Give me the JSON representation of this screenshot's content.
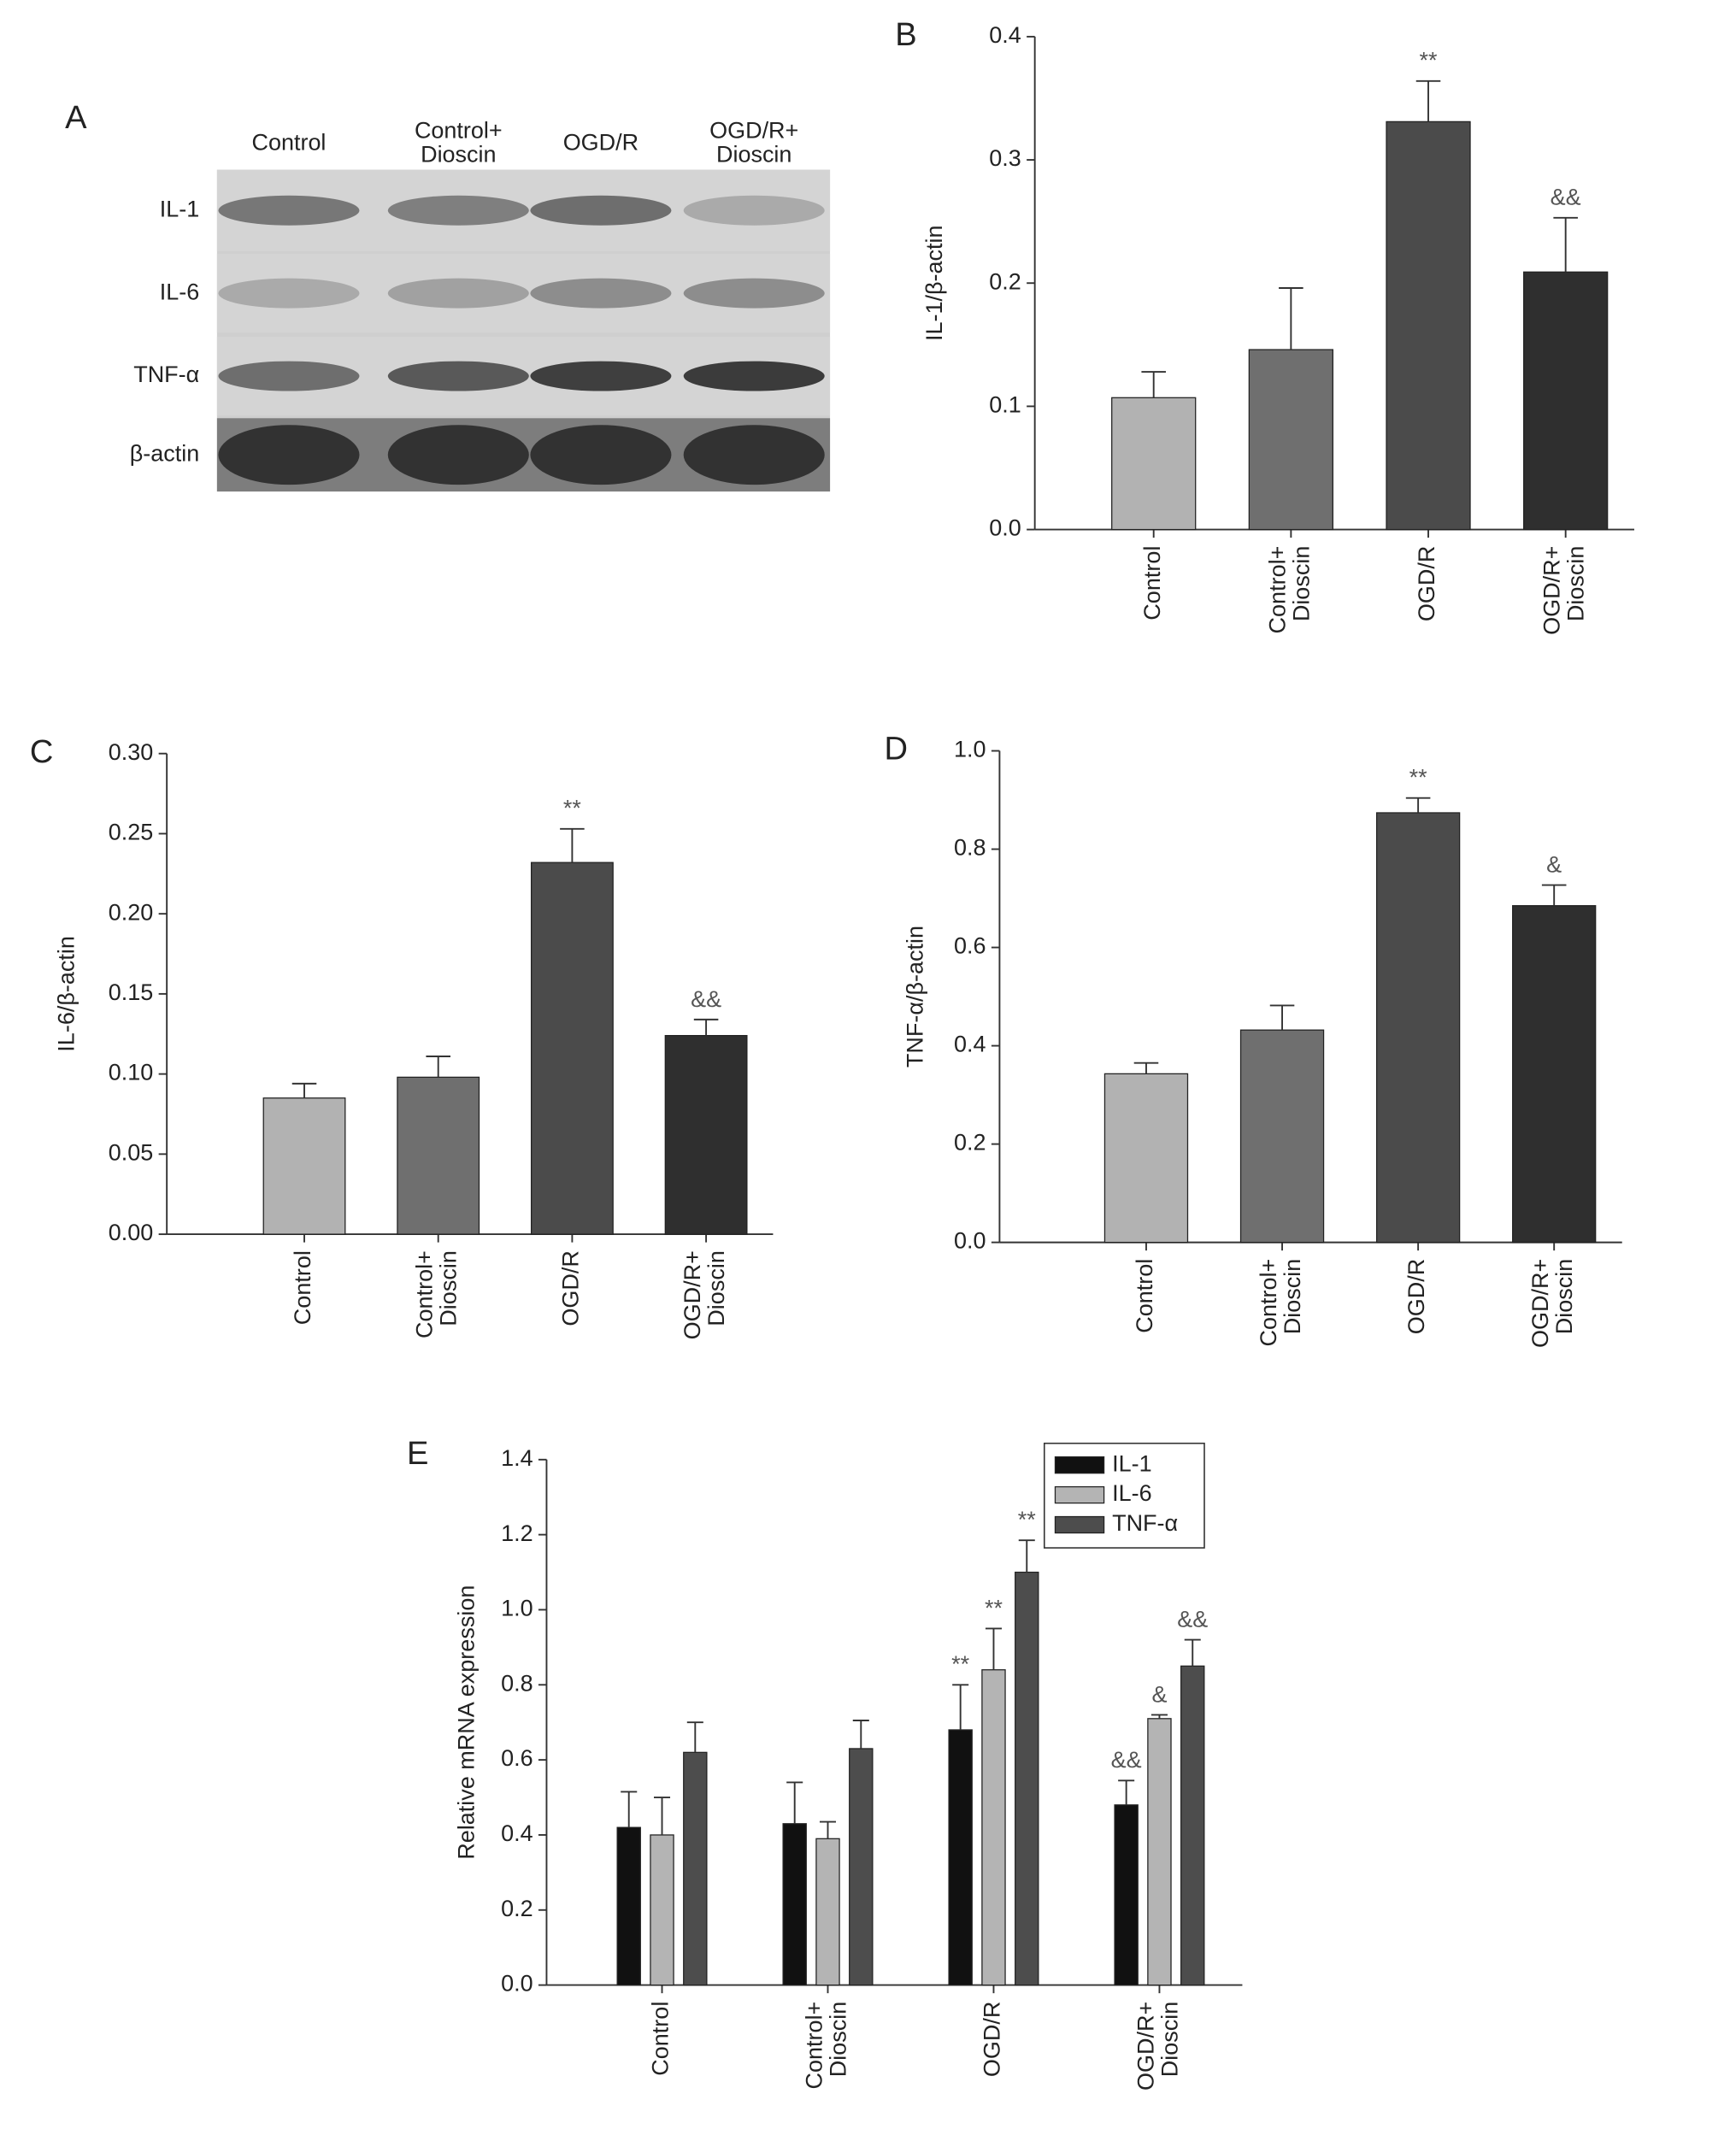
{
  "blot": {
    "panel_label": "A",
    "lanes": [
      "Control",
      "Control+\nDioscin",
      "OGD/R",
      "OGD/R+\nDioscin"
    ],
    "rows": [
      "IL-1",
      "IL-6",
      "TNF-α",
      "β-actin"
    ]
  },
  "chart_data": [
    {
      "type": "bar",
      "panel_label": "B",
      "y_label": "IL-1/β-actin",
      "categories": [
        "Control",
        "Control+\nDioscin",
        "OGD/R",
        "OGD/R+\nDioscin"
      ],
      "values": [
        0.107,
        0.146,
        0.331,
        0.209
      ],
      "errors": [
        0.021,
        0.05,
        0.033,
        0.044
      ],
      "annotations": [
        null,
        null,
        "**",
        "&&"
      ],
      "colors": [
        "#b2b2b2",
        "#6f6f6f",
        "#4b4b4b",
        "#2f2f2f"
      ],
      "ylim": [
        0,
        0.4
      ],
      "yticks": [
        {
          "value": 0,
          "label": "0.0"
        },
        0.1,
        0.2,
        0.3,
        0.4
      ]
    },
    {
      "type": "bar",
      "panel_label": "C",
      "y_label": "IL-6/β-actin",
      "categories": [
        "Control",
        "Control+\nDioscin",
        "OGD/R",
        "OGD/R+\nDioscin"
      ],
      "values": [
        0.085,
        0.098,
        0.232,
        0.124
      ],
      "errors": [
        0.009,
        0.013,
        0.021,
        0.01
      ],
      "annotations": [
        null,
        null,
        "**",
        "&&"
      ],
      "colors": [
        "#b2b2b2",
        "#6f6f6f",
        "#4b4b4b",
        "#2f2f2f"
      ],
      "ylim": [
        0,
        0.3
      ],
      "yticks": [
        {
          "value": 0,
          "label": "0.00"
        },
        0.05,
        {
          "value": 0.1,
          "label": "0.10"
        },
        0.15,
        {
          "value": 0.2,
          "label": "0.20"
        },
        0.25,
        {
          "value": 0.3,
          "label": "0.30"
        }
      ]
    },
    {
      "type": "bar",
      "panel_label": "D",
      "y_label": "TNF-α/β-actin",
      "categories": [
        "Control",
        "Control+\nDioscin",
        "OGD/R",
        "OGD/R+\nDioscin"
      ],
      "values": [
        0.343,
        0.432,
        0.874,
        0.685
      ],
      "errors": [
        0.022,
        0.05,
        0.03,
        0.042
      ],
      "annotations": [
        null,
        null,
        "**",
        "&"
      ],
      "colors": [
        "#b2b2b2",
        "#6f6f6f",
        "#4b4b4b",
        "#2f2f2f"
      ],
      "ylim": [
        0,
        1
      ],
      "yticks": [
        {
          "value": 0,
          "label": "0.0"
        },
        0.2,
        0.4,
        0.6,
        0.8,
        {
          "value": 1,
          "label": "1.0"
        }
      ]
    },
    {
      "type": "bar",
      "panel_label": "E",
      "y_label": "Relative mRNA expression",
      "categories": [
        "Control",
        "Control+\nDioscin",
        "OGD/R",
        "OGD/R+\nDioscin"
      ],
      "series": [
        {
          "name": "IL-1",
          "color": "#111111",
          "values": [
            0.42,
            0.43,
            0.68,
            0.48
          ],
          "errors": [
            0.095,
            0.11,
            0.12,
            0.065
          ],
          "annotations": [
            null,
            null,
            "**",
            "&&"
          ]
        },
        {
          "name": "IL-6",
          "color": "#b4b4b4",
          "values": [
            0.4,
            0.39,
            0.84,
            0.71
          ],
          "errors": [
            0.1,
            0.045,
            0.11,
            0.01
          ],
          "annotations": [
            null,
            null,
            "**",
            "&"
          ]
        },
        {
          "name": "TNF-α",
          "color": "#4d4d4d",
          "values": [
            0.62,
            0.63,
            1.1,
            0.85
          ],
          "errors": [
            0.08,
            0.075,
            0.085,
            0.07
          ],
          "annotations": [
            null,
            null,
            "**",
            "&&"
          ]
        }
      ],
      "legend": "upper right",
      "ylim": [
        0,
        1.4
      ],
      "yticks": [
        {
          "value": 0,
          "label": "0.0"
        },
        0.2,
        0.4,
        0.6,
        0.8,
        {
          "value": 1,
          "label": "1.0"
        },
        1.2,
        1.4
      ]
    }
  ]
}
